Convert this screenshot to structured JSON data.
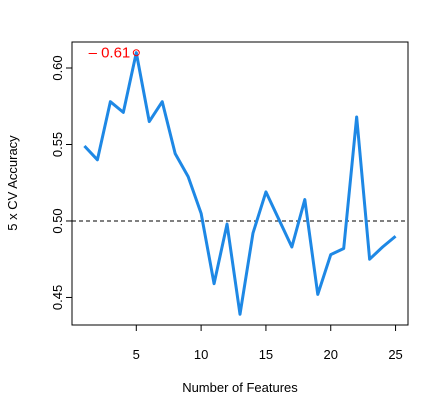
{
  "chart_data": {
    "type": "line",
    "xlabel": "Number of Features",
    "ylabel": "5 x CV Accuracy",
    "annotation": "– 0.61",
    "annotation_color": "#ff0000",
    "x": [
      1,
      2,
      3,
      4,
      5,
      6,
      7,
      8,
      9,
      10,
      11,
      12,
      13,
      14,
      15,
      16,
      17,
      18,
      19,
      20,
      21,
      22,
      23,
      24,
      25
    ],
    "series": [
      {
        "color": "#1e88e5",
        "values": [
          0.549,
          0.54,
          0.578,
          0.571,
          0.61,
          0.565,
          0.578,
          0.544,
          0.529,
          0.505,
          0.459,
          0.498,
          0.439,
          0.492,
          0.519,
          0.501,
          0.483,
          0.514,
          0.452,
          0.478,
          0.482,
          0.568,
          0.475,
          0.483,
          0.49
        ]
      }
    ],
    "highlight_index": 4,
    "hline": 0.5,
    "xlim": [
      0.04,
      25.96
    ],
    "ylim": [
      0.432,
      0.617
    ],
    "xticks": [
      5,
      10,
      15,
      20,
      25
    ],
    "yticks": [
      0.45,
      {
        "value": 0.5,
        "label": "0.50"
      },
      0.55,
      {
        "value": 0.6,
        "label": "0.60"
      }
    ]
  }
}
